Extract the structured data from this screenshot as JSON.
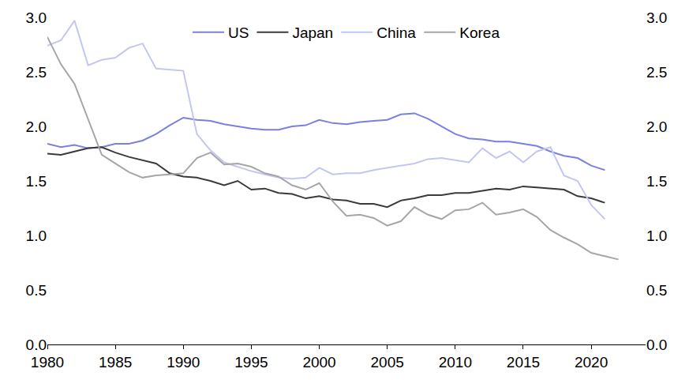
{
  "chart_data": {
    "type": "line",
    "x": [
      1980,
      1981,
      1982,
      1983,
      1984,
      1985,
      1986,
      1987,
      1988,
      1989,
      1990,
      1991,
      1992,
      1993,
      1994,
      1995,
      1996,
      1997,
      1998,
      1999,
      2000,
      2001,
      2002,
      2003,
      2004,
      2005,
      2006,
      2007,
      2008,
      2009,
      2010,
      2011,
      2012,
      2013,
      2014,
      2015,
      2016,
      2017,
      2018,
      2019,
      2020,
      2021,
      2022
    ],
    "series": [
      {
        "name": "US",
        "color": "#7b7fe0",
        "values": [
          1.84,
          1.81,
          1.83,
          1.8,
          1.81,
          1.84,
          1.84,
          1.87,
          1.93,
          2.01,
          2.08,
          2.06,
          2.05,
          2.02,
          2.0,
          1.98,
          1.97,
          1.97,
          2.0,
          2.01,
          2.06,
          2.03,
          2.02,
          2.04,
          2.05,
          2.06,
          2.11,
          2.12,
          2.07,
          2.0,
          1.93,
          1.89,
          1.88,
          1.86,
          1.86,
          1.84,
          1.82,
          1.77,
          1.73,
          1.71,
          1.64,
          1.6,
          null
        ]
      },
      {
        "name": "Japan",
        "color": "#3a3a3a",
        "values": [
          1.75,
          1.74,
          1.77,
          1.8,
          1.81,
          1.76,
          1.72,
          1.69,
          1.66,
          1.57,
          1.54,
          1.53,
          1.5,
          1.46,
          1.5,
          1.42,
          1.43,
          1.39,
          1.38,
          1.34,
          1.36,
          1.33,
          1.32,
          1.29,
          1.29,
          1.26,
          1.32,
          1.34,
          1.37,
          1.37,
          1.39,
          1.39,
          1.41,
          1.43,
          1.42,
          1.45,
          1.44,
          1.43,
          1.42,
          1.36,
          1.34,
          1.3,
          null
        ]
      },
      {
        "name": "China",
        "color": "#c4c6f2",
        "values": [
          2.74,
          2.79,
          2.97,
          2.56,
          2.61,
          2.63,
          2.72,
          2.76,
          2.53,
          2.52,
          2.51,
          1.93,
          1.78,
          1.67,
          1.63,
          1.59,
          1.56,
          1.53,
          1.52,
          1.53,
          1.62,
          1.56,
          1.57,
          1.57,
          1.6,
          1.62,
          1.64,
          1.66,
          1.7,
          1.71,
          1.69,
          1.67,
          1.8,
          1.71,
          1.77,
          1.67,
          1.77,
          1.81,
          1.55,
          1.5,
          1.28,
          1.15,
          null
        ]
      },
      {
        "name": "Korea",
        "color": "#a6a6a6",
        "values": [
          2.82,
          2.57,
          2.39,
          2.06,
          1.74,
          1.66,
          1.58,
          1.53,
          1.55,
          1.56,
          1.57,
          1.71,
          1.76,
          1.65,
          1.66,
          1.63,
          1.57,
          1.54,
          1.46,
          1.42,
          1.48,
          1.31,
          1.18,
          1.19,
          1.16,
          1.09,
          1.13,
          1.26,
          1.19,
          1.15,
          1.23,
          1.24,
          1.3,
          1.19,
          1.21,
          1.24,
          1.17,
          1.05,
          0.98,
          0.92,
          0.84,
          0.81,
          0.78
        ]
      }
    ],
    "xlim": [
      1980,
      2024
    ],
    "xticks": [
      1980,
      1985,
      1990,
      1995,
      2000,
      2005,
      2010,
      2015,
      2020
    ],
    "ylim": [
      0,
      3
    ],
    "yticks": [
      {
        "value": 0,
        "label": "0.0"
      },
      0.5,
      {
        "value": 1,
        "label": "1.0"
      },
      1.5,
      {
        "value": 2,
        "label": "2.0"
      },
      2.5,
      {
        "value": 3,
        "label": "3.0"
      }
    ],
    "y2lim": [
      0,
      3
    ],
    "y2ticks": [
      {
        "value": 0,
        "label": "0.0"
      },
      0.5,
      {
        "value": 1,
        "label": "1.0"
      },
      1.5,
      {
        "value": 2,
        "label": "2.0"
      },
      2.5,
      {
        "value": 3,
        "label": "3.0"
      }
    ],
    "grid": false,
    "legend": "top"
  }
}
